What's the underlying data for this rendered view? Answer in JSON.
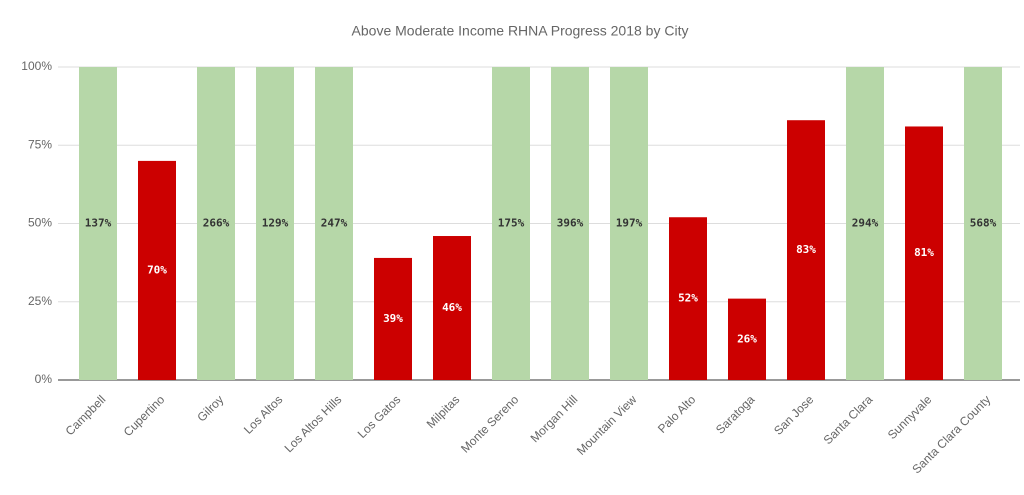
{
  "chart_data": {
    "type": "bar",
    "title": "Above Moderate Income RHNA Progress 2018 by City",
    "categories": [
      "Campbell",
      "Cupertino",
      "Gilroy",
      "Los Altos",
      "Los Altos Hills",
      "Los Gatos",
      "Milpitas",
      "Monte Sereno",
      "Morgan Hill",
      "Mountain View",
      "Palo Alto",
      "Saratoga",
      "San Jose",
      "Santa Clara",
      "Sunnyvale",
      "Santa Clara County"
    ],
    "values": [
      137,
      70,
      266,
      129,
      247,
      39,
      46,
      175,
      396,
      197,
      52,
      26,
      83,
      294,
      81,
      568
    ],
    "value_labels": [
      "137%",
      "70%",
      "266%",
      "129%",
      "247%",
      "39%",
      "46%",
      "175%",
      "396%",
      "197%",
      "52%",
      "26%",
      "83%",
      "294%",
      "81%",
      "568%"
    ],
    "colors": [
      "#b6d7a8",
      "#cc0000",
      "#b6d7a8",
      "#b6d7a8",
      "#b6d7a8",
      "#cc0000",
      "#cc0000",
      "#b6d7a8",
      "#b6d7a8",
      "#b6d7a8",
      "#cc0000",
      "#cc0000",
      "#cc0000",
      "#b6d7a8",
      "#cc0000",
      "#b6d7a8"
    ],
    "ylim": [
      0,
      100
    ],
    "yticks": [
      {
        "value": 0,
        "label": "0%"
      },
      {
        "value": 25,
        "label": "25%"
      },
      {
        "value": 50,
        "label": "50%"
      },
      {
        "value": 75,
        "label": "75%"
      },
      {
        "value": 100,
        "label": "100%"
      }
    ],
    "grid": true
  }
}
